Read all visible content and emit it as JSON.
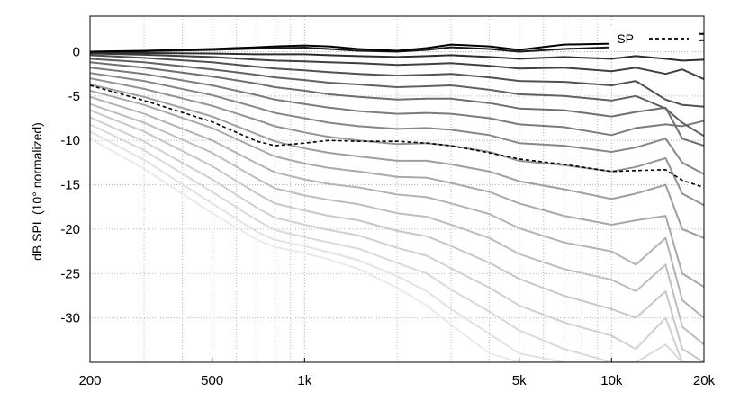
{
  "chart_data": {
    "type": "line",
    "ylabel": "dB SPL (10° normalized)",
    "xscale": "log",
    "xlim": [
      200,
      20000
    ],
    "ylim": [
      -35,
      4
    ],
    "x_ticks": [
      200,
      500,
      1000,
      5000,
      10000,
      20000
    ],
    "x_tick_labels": [
      "200",
      "500",
      "1k",
      "5k",
      "10k",
      "20k"
    ],
    "y_ticks": [
      0,
      -5,
      -10,
      -15,
      -20,
      -25,
      -30
    ],
    "y_tick_labels": [
      "0",
      "-5",
      "-10",
      "-15",
      "-20",
      "-25",
      "-30"
    ],
    "grid": "dotted",
    "legend": {
      "placement": "top-right",
      "entries": [
        {
          "label": "SP",
          "style": "dashed"
        }
      ]
    },
    "x": [
      200,
      300,
      500,
      700,
      800,
      1000,
      1200,
      1500,
      2000,
      2500,
      3000,
      4000,
      5000,
      7000,
      10000,
      12000,
      15000,
      17000,
      20000
    ],
    "series": [
      {
        "color": "#000000",
        "width": 2,
        "values": [
          0,
          0.1,
          0.3,
          0.5,
          0.6,
          0.7,
          0.6,
          0.3,
          0.1,
          0.4,
          0.8,
          0.6,
          0.2,
          0.8,
          0.9,
          1.2,
          1.0,
          2.0,
          2.0
        ]
      },
      {
        "color": "#1a1a1a",
        "width": 2,
        "values": [
          0,
          0.05,
          0.2,
          0.35,
          0.4,
          0.45,
          0.3,
          0.1,
          0.0,
          0.2,
          0.5,
          0.3,
          0.0,
          0.3,
          0.5,
          0.7,
          0.5,
          1.2,
          1.3
        ]
      },
      {
        "color": "#2e2e2e",
        "width": 2,
        "values": [
          -0.1,
          -0.15,
          -0.2,
          -0.3,
          -0.3,
          -0.3,
          -0.4,
          -0.5,
          -0.6,
          -0.5,
          -0.4,
          -0.6,
          -0.8,
          -0.6,
          -0.8,
          -0.5,
          -0.8,
          -1.0,
          -0.9
        ]
      },
      {
        "color": "#404040",
        "width": 2,
        "values": [
          -0.2,
          -0.35,
          -0.6,
          -0.9,
          -1.0,
          -1.1,
          -1.2,
          -1.3,
          -1.5,
          -1.4,
          -1.3,
          -1.6,
          -1.9,
          -1.8,
          -2.2,
          -1.8,
          -2.5,
          -2.0,
          -3.1
        ]
      },
      {
        "color": "#515151",
        "width": 2,
        "values": [
          -0.4,
          -0.7,
          -1.2,
          -1.7,
          -1.9,
          -2.1,
          -2.3,
          -2.5,
          -2.7,
          -2.6,
          -2.5,
          -2.9,
          -3.3,
          -3.4,
          -3.8,
          -3.3,
          -5.4,
          -6.0,
          -6.2
        ]
      },
      {
        "color": "#616161",
        "width": 2,
        "values": [
          -0.8,
          -1.2,
          -2.0,
          -2.6,
          -2.9,
          -3.2,
          -3.5,
          -3.7,
          -4.0,
          -3.9,
          -3.8,
          -4.3,
          -4.8,
          -5.0,
          -5.5,
          -5.0,
          -6.4,
          -8.0,
          -9.5
        ]
      },
      {
        "color": "#6e6e6e",
        "width": 2,
        "values": [
          -1.2,
          -1.8,
          -2.8,
          -3.6,
          -4.0,
          -4.4,
          -4.8,
          -5.1,
          -5.4,
          -5.3,
          -5.3,
          -5.8,
          -6.4,
          -6.6,
          -7.3,
          -6.8,
          -6.3,
          -9.8,
          -10.6
        ]
      },
      {
        "color": "#7b7b7b",
        "width": 2,
        "values": [
          -1.8,
          -2.5,
          -3.8,
          -4.9,
          -5.4,
          -5.9,
          -6.3,
          -6.7,
          -7.0,
          -6.9,
          -7.0,
          -7.5,
          -8.2,
          -8.5,
          -9.4,
          -8.6,
          -8.2,
          -8.4,
          -7.8
        ]
      },
      {
        "color": "#878787",
        "width": 2,
        "values": [
          -2.4,
          -3.3,
          -4.9,
          -6.3,
          -6.9,
          -7.5,
          -8.0,
          -8.4,
          -8.7,
          -8.6,
          -8.8,
          -9.4,
          -10.3,
          -10.6,
          -11.3,
          -10.8,
          -9.8,
          -12.5,
          -13.8
        ]
      },
      {
        "color": "#939393",
        "width": 2,
        "values": [
          -3.0,
          -4.2,
          -6.1,
          -7.7,
          -8.4,
          -9.1,
          -9.6,
          -10.0,
          -10.4,
          -10.3,
          -10.6,
          -11.3,
          -12.3,
          -12.8,
          -13.5,
          -13.0,
          -12.0,
          -16.0,
          -17.3
        ]
      },
      {
        "color": "#9e9e9e",
        "width": 2,
        "values": [
          -3.7,
          -5.1,
          -7.3,
          -9.3,
          -10.1,
          -10.9,
          -11.4,
          -11.8,
          -12.3,
          -12.3,
          -12.7,
          -13.5,
          -14.6,
          -15.5,
          -16.6,
          -16.0,
          -15.0,
          -20.0,
          -21.0
        ]
      },
      {
        "color": "#a9a9a9",
        "width": 2,
        "values": [
          -4.4,
          -6.0,
          -8.6,
          -10.9,
          -11.8,
          -12.6,
          -13.1,
          -13.5,
          -14.1,
          -14.2,
          -14.8,
          -15.8,
          -17.1,
          -18.5,
          -19.5,
          -19.0,
          -18.5,
          -25.0,
          -26.5
        ]
      },
      {
        "color": "#b3b3b3",
        "width": 2,
        "values": [
          -5.1,
          -7.0,
          -10.0,
          -12.6,
          -13.6,
          -14.4,
          -14.9,
          -15.3,
          -16.1,
          -16.4,
          -17.1,
          -18.3,
          -19.9,
          -21.5,
          -22.5,
          -24.0,
          -21.0,
          -28.0,
          -30.0
        ]
      },
      {
        "color": "#bdbdbd",
        "width": 2,
        "values": [
          -5.9,
          -8.0,
          -11.4,
          -14.3,
          -15.4,
          -16.2,
          -16.7,
          -17.2,
          -18.2,
          -18.6,
          -19.5,
          -21.0,
          -22.8,
          -24.5,
          -25.7,
          -27.0,
          -24.0,
          -31.0,
          -33.0
        ]
      },
      {
        "color": "#c7c7c7",
        "width": 2,
        "values": [
          -6.6,
          -9.0,
          -12.9,
          -16.0,
          -17.1,
          -17.9,
          -18.5,
          -19.0,
          -20.2,
          -20.8,
          -21.9,
          -23.8,
          -25.6,
          -27.5,
          -29.0,
          -30.0,
          -27.0,
          -33.5,
          -35.0
        ]
      },
      {
        "color": "#d0d0d0",
        "width": 2,
        "values": [
          -7.4,
          -10.1,
          -14.4,
          -17.6,
          -18.7,
          -19.5,
          -20.1,
          -20.7,
          -22.1,
          -23.0,
          -24.4,
          -26.6,
          -28.6,
          -30.5,
          -32.0,
          -33.5,
          -30.0,
          -35.0,
          -35.0
        ]
      },
      {
        "color": "#d9d9d9",
        "width": 2,
        "values": [
          -8.2,
          -11.1,
          -15.8,
          -19.0,
          -20.1,
          -20.9,
          -21.5,
          -22.2,
          -23.8,
          -25.0,
          -26.8,
          -29.3,
          -31.4,
          -33.5,
          -35.0,
          -35.0,
          -33.0,
          -35.0,
          -35.0
        ]
      },
      {
        "color": "#e2e2e2",
        "width": 2,
        "values": [
          -9.0,
          -12.2,
          -17.1,
          -20.3,
          -21.2,
          -21.9,
          -22.6,
          -23.5,
          -25.3,
          -27.0,
          -29.0,
          -31.8,
          -34.0,
          -35.0,
          -35.0,
          -35.0,
          -35.0,
          -35.0,
          -35.0
        ]
      },
      {
        "color": "#eaeaea",
        "width": 2,
        "values": [
          -9.8,
          -13.2,
          -18.2,
          -21.2,
          -22.0,
          -22.7,
          -23.4,
          -24.5,
          -26.6,
          -28.6,
          -30.8,
          -34.0,
          -35.0,
          -35.0,
          -35.0,
          -35.0,
          -35.0,
          -35.0,
          -35.0
        ]
      },
      {
        "name": "SP",
        "color": "#000000",
        "width": 1.6,
        "dashed": true,
        "values": [
          -3.8,
          -5.5,
          -7.9,
          -10.1,
          -10.6,
          -10.3,
          -10.0,
          -10.1,
          -10.1,
          -10.3,
          -10.6,
          -11.4,
          -12.1,
          -12.7,
          -13.5,
          -13.4,
          -13.3,
          -14.5,
          -15.3
        ]
      }
    ]
  }
}
